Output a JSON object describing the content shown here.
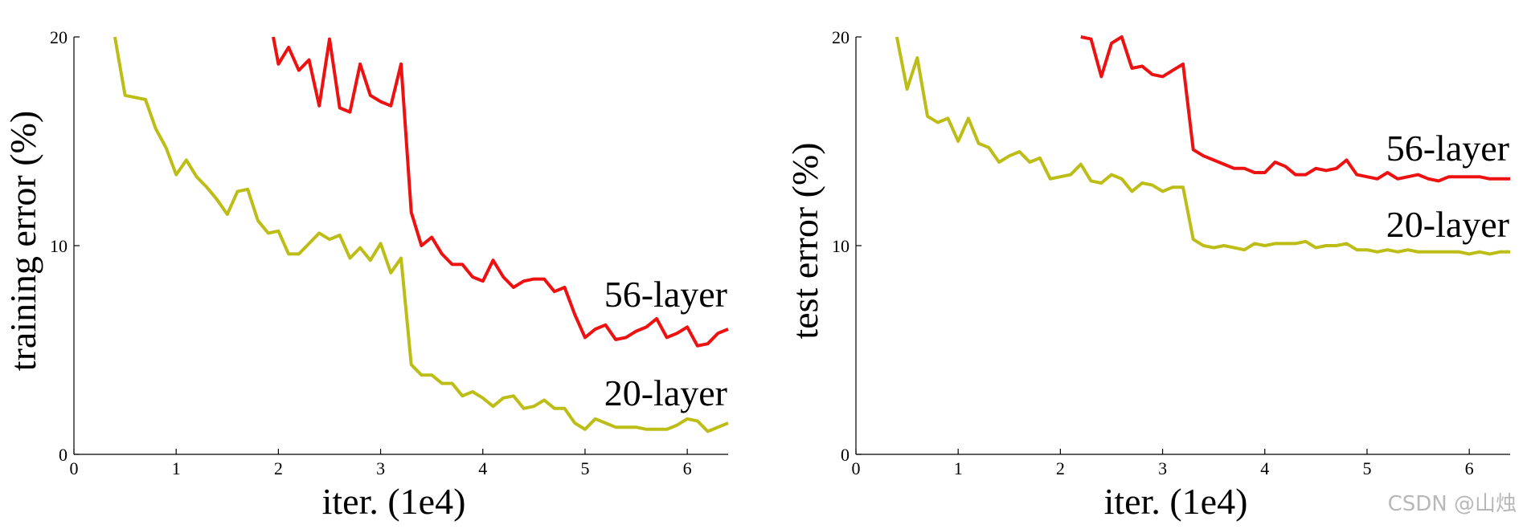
{
  "watermark": "CSDN @山烛",
  "colors": {
    "series_56": "#ee1111",
    "series_20": "#bdbd17"
  },
  "chart_data": [
    {
      "type": "line",
      "xlabel": "iter. (1e4)",
      "ylabel": "training error (%)",
      "xlim": [
        0,
        6.4
      ],
      "ylim": [
        0,
        20
      ],
      "xticks": [
        "0",
        "1",
        "2",
        "3",
        "4",
        "5",
        "6"
      ],
      "yticks": [
        "0",
        "10",
        "20"
      ],
      "grid": false,
      "series": [
        {
          "name": "56-layer",
          "color": "#ee1111",
          "x": [
            1.95,
            2.0,
            2.1,
            2.2,
            2.3,
            2.4,
            2.5,
            2.6,
            2.7,
            2.8,
            2.9,
            3.0,
            3.1,
            3.2,
            3.3,
            3.4,
            3.5,
            3.6,
            3.7,
            3.8,
            3.9,
            4.0,
            4.1,
            4.2,
            4.3,
            4.4,
            4.5,
            4.6,
            4.7,
            4.8,
            4.9,
            5.0,
            5.1,
            5.2,
            5.3,
            5.4,
            5.5,
            5.6,
            5.7,
            5.8,
            5.9,
            6.0,
            6.1,
            6.2,
            6.3,
            6.4
          ],
          "values": [
            20.0,
            18.7,
            19.5,
            18.4,
            18.9,
            16.7,
            19.9,
            16.6,
            16.4,
            18.7,
            17.2,
            16.9,
            16.7,
            18.7,
            11.6,
            10.0,
            10.4,
            9.6,
            9.1,
            9.1,
            8.5,
            8.3,
            9.3,
            8.5,
            8.0,
            8.3,
            8.4,
            8.4,
            7.8,
            8.0,
            6.7,
            5.6,
            6.0,
            6.2,
            5.5,
            5.6,
            5.9,
            6.1,
            6.5,
            5.6,
            5.8,
            6.1,
            5.2,
            5.3,
            5.8,
            6.0
          ]
        },
        {
          "name": "20-layer",
          "color": "#bdbd17",
          "x": [
            0.4,
            0.5,
            0.6,
            0.7,
            0.8,
            0.9,
            1.0,
            1.1,
            1.2,
            1.3,
            1.4,
            1.5,
            1.6,
            1.7,
            1.8,
            1.9,
            2.0,
            2.1,
            2.2,
            2.3,
            2.4,
            2.5,
            2.6,
            2.7,
            2.8,
            2.9,
            3.0,
            3.1,
            3.2,
            3.3,
            3.4,
            3.5,
            3.6,
            3.7,
            3.8,
            3.9,
            4.0,
            4.1,
            4.2,
            4.3,
            4.4,
            4.5,
            4.6,
            4.7,
            4.8,
            4.9,
            5.0,
            5.1,
            5.2,
            5.3,
            5.4,
            5.5,
            5.6,
            5.7,
            5.8,
            5.9,
            6.0,
            6.1,
            6.2,
            6.3,
            6.4
          ],
          "values": [
            20.0,
            17.2,
            17.1,
            17.0,
            15.6,
            14.7,
            13.4,
            14.1,
            13.3,
            12.8,
            12.2,
            11.5,
            12.6,
            12.7,
            11.2,
            10.6,
            10.7,
            9.6,
            9.6,
            10.1,
            10.6,
            10.3,
            10.5,
            9.4,
            9.9,
            9.3,
            10.1,
            8.7,
            9.4,
            4.3,
            3.8,
            3.8,
            3.4,
            3.4,
            2.8,
            3.0,
            2.7,
            2.3,
            2.7,
            2.8,
            2.2,
            2.3,
            2.6,
            2.2,
            2.2,
            1.5,
            1.2,
            1.7,
            1.5,
            1.3,
            1.3,
            1.3,
            1.2,
            1.2,
            1.2,
            1.4,
            1.7,
            1.6,
            1.1,
            1.3,
            1.5
          ]
        }
      ],
      "annotations": [
        "56-layer",
        "20-layer"
      ]
    },
    {
      "type": "line",
      "xlabel": "iter. (1e4)",
      "ylabel": "test error (%)",
      "xlim": [
        0,
        6.4
      ],
      "ylim": [
        0,
        20
      ],
      "xticks": [
        "0",
        "1",
        "2",
        "3",
        "4",
        "5",
        "6"
      ],
      "yticks": [
        "0",
        "10",
        "20"
      ],
      "grid": false,
      "series": [
        {
          "name": "56-layer",
          "color": "#ee1111",
          "x": [
            2.2,
            2.3,
            2.4,
            2.5,
            2.6,
            2.7,
            2.8,
            2.9,
            3.0,
            3.1,
            3.2,
            3.3,
            3.4,
            3.5,
            3.6,
            3.7,
            3.8,
            3.9,
            4.0,
            4.1,
            4.2,
            4.3,
            4.4,
            4.5,
            4.6,
            4.7,
            4.8,
            4.9,
            5.0,
            5.1,
            5.2,
            5.3,
            5.4,
            5.5,
            5.6,
            5.7,
            5.8,
            5.9,
            6.0,
            6.1,
            6.2,
            6.3,
            6.4
          ],
          "values": [
            20.0,
            19.9,
            18.1,
            19.7,
            20.0,
            18.5,
            18.6,
            18.2,
            18.1,
            18.4,
            18.7,
            14.6,
            14.3,
            14.1,
            13.9,
            13.7,
            13.7,
            13.5,
            13.5,
            14.0,
            13.8,
            13.4,
            13.4,
            13.7,
            13.6,
            13.7,
            14.1,
            13.4,
            13.3,
            13.2,
            13.5,
            13.2,
            13.3,
            13.4,
            13.2,
            13.1,
            13.3,
            13.3,
            13.3,
            13.3,
            13.2,
            13.2,
            13.2
          ]
        },
        {
          "name": "20-layer",
          "color": "#bdbd17",
          "x": [
            0.4,
            0.5,
            0.6,
            0.7,
            0.8,
            0.9,
            1.0,
            1.1,
            1.2,
            1.3,
            1.4,
            1.5,
            1.6,
            1.7,
            1.8,
            1.9,
            2.0,
            2.1,
            2.2,
            2.3,
            2.4,
            2.5,
            2.6,
            2.7,
            2.8,
            2.9,
            3.0,
            3.1,
            3.2,
            3.3,
            3.4,
            3.5,
            3.6,
            3.7,
            3.8,
            3.9,
            4.0,
            4.1,
            4.2,
            4.3,
            4.4,
            4.5,
            4.6,
            4.7,
            4.8,
            4.9,
            5.0,
            5.1,
            5.2,
            5.3,
            5.4,
            5.5,
            5.6,
            5.7,
            5.8,
            5.9,
            6.0,
            6.1,
            6.2,
            6.3,
            6.4
          ],
          "values": [
            20.0,
            17.5,
            19.0,
            16.2,
            15.9,
            16.1,
            15.0,
            16.1,
            14.9,
            14.7,
            14.0,
            14.3,
            14.5,
            14.0,
            14.2,
            13.2,
            13.3,
            13.4,
            13.9,
            13.1,
            13.0,
            13.4,
            13.2,
            12.6,
            13.0,
            12.9,
            12.6,
            12.8,
            12.8,
            10.3,
            10.0,
            9.9,
            10.0,
            9.9,
            9.8,
            10.1,
            10.0,
            10.1,
            10.1,
            10.1,
            10.2,
            9.9,
            10.0,
            10.0,
            10.1,
            9.8,
            9.8,
            9.7,
            9.8,
            9.7,
            9.8,
            9.7,
            9.7,
            9.7,
            9.7,
            9.7,
            9.6,
            9.7,
            9.6,
            9.7,
            9.7
          ]
        }
      ],
      "annotations": [
        "56-layer",
        "20-layer"
      ]
    }
  ]
}
